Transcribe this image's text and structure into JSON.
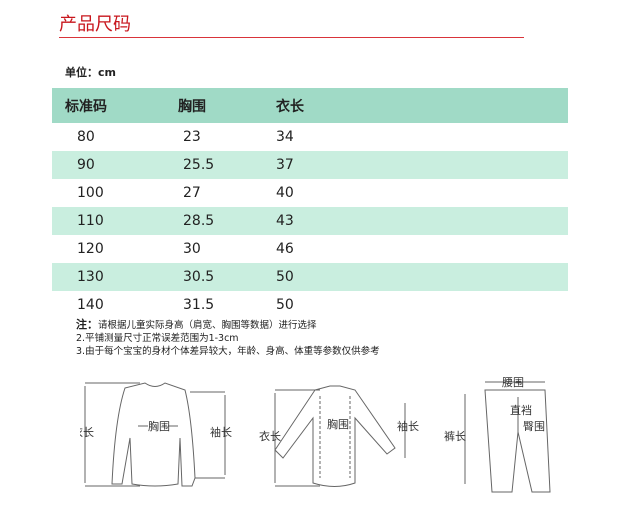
{
  "header": {
    "title": "产品尺码",
    "unit": "单位：cm"
  },
  "table": {
    "columns": [
      "标准码",
      "胸围",
      "衣长"
    ],
    "rows": [
      [
        "80",
        "23",
        "34"
      ],
      [
        "90",
        "25.5",
        "37"
      ],
      [
        "100",
        "27",
        "40"
      ],
      [
        "110",
        "28.5",
        "43"
      ],
      [
        "120",
        "30",
        "46"
      ],
      [
        "130",
        "30.5",
        "50"
      ],
      [
        "140",
        "31.5",
        "50"
      ]
    ],
    "colors": {
      "header": "#a0dac6",
      "stripe": "#c9eedf",
      "title": "#c8161d"
    }
  },
  "notes": {
    "prefix": "注：",
    "line1": "请根据儿童实际身高（肩宽、胸围等数据）进行选择",
    "line2": "2.平铺测量尺寸正常误差范围为1-3cm",
    "line3": "3.由于每个宝宝的身材个体差异较大，年龄、身高、体重等参数仅供参考"
  },
  "diagrams": {
    "sweater": {
      "length": "衣长",
      "chest": "胸围",
      "sleeve": "袖长"
    },
    "shirt": {
      "length": "衣长",
      "chest": "胸围",
      "sleeve": "袖长"
    },
    "pants": {
      "waist": "腰围",
      "length": "裤长",
      "crotch": "直裆",
      "hip": "臀围"
    }
  }
}
